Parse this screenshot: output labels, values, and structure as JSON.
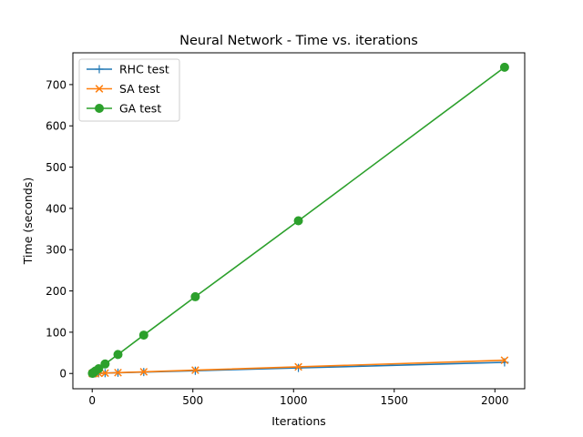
{
  "chart_data": {
    "type": "line",
    "title": "Neural Network - Time vs. iterations",
    "xlabel": "Iterations",
    "ylabel": "Time (seconds)",
    "xlim": [
      -96,
      2148
    ],
    "ylim": [
      -37,
      777
    ],
    "xticks": [
      0,
      500,
      1000,
      1500,
      2000
    ],
    "yticks": [
      0,
      100,
      200,
      300,
      400,
      500,
      600,
      700
    ],
    "grid": false,
    "legend_position": "upper-left",
    "series": [
      {
        "name": "RHC test",
        "color": "#1f77b4",
        "marker": "plus",
        "x": [
          1,
          2,
          4,
          8,
          16,
          32,
          64,
          128,
          256,
          512,
          1024,
          2048
        ],
        "y": [
          0.02,
          0.04,
          0.08,
          0.15,
          0.3,
          0.5,
          0.9,
          1.8,
          3.4,
          6.7,
          13.5,
          27
        ]
      },
      {
        "name": "SA test",
        "color": "#ff7f0e",
        "marker": "x",
        "x": [
          1,
          2,
          4,
          8,
          16,
          32,
          64,
          128,
          256,
          512,
          1024,
          2048
        ],
        "y": [
          0.02,
          0.05,
          0.1,
          0.2,
          0.4,
          0.6,
          1.0,
          2.0,
          4.0,
          8.0,
          16.0,
          32.0
        ]
      },
      {
        "name": "GA test",
        "color": "#2ca02c",
        "marker": "circle",
        "x": [
          1,
          2,
          4,
          8,
          16,
          32,
          64,
          128,
          256,
          512,
          1024,
          2048
        ],
        "y": [
          0.4,
          0.8,
          1.5,
          3.0,
          6.0,
          11.5,
          23.0,
          46.0,
          93.0,
          186.0,
          370.0,
          742.0
        ]
      }
    ]
  }
}
